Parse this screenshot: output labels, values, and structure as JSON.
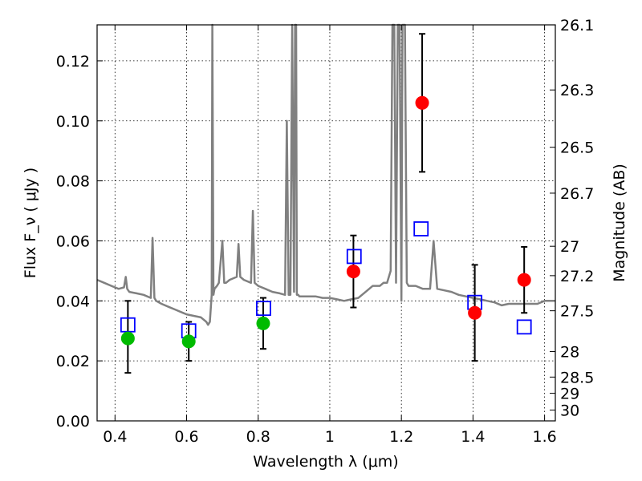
{
  "chart_data": {
    "type": "scatter",
    "xlabel": "Wavelength  λ (μm)",
    "ylabel": "Flux  F_ν  ( μJy )",
    "y2label": "Magnitude (AB)",
    "xlim": [
      0.35,
      1.63
    ],
    "ylim": [
      0.0,
      0.132
    ],
    "grid": true,
    "x_ticks": [
      0.4,
      0.6,
      0.8,
      1.0,
      1.2,
      1.4,
      1.6
    ],
    "x_tick_labels": [
      "0.4",
      "0.6",
      "0.8",
      "1",
      "1.2",
      "1.4",
      "1.6"
    ],
    "y_ticks": [
      0.0,
      0.02,
      0.04,
      0.06,
      0.08,
      0.1,
      0.12
    ],
    "y_tick_labels": [
      "0.00",
      "0.02",
      "0.04",
      "0.06",
      "0.08",
      "0.10",
      "0.12"
    ],
    "y2_ticks": [
      {
        "label": "26.1",
        "flux": 0.132
      },
      {
        "label": "26.3",
        "flux": 0.1103
      },
      {
        "label": "26.5",
        "flux": 0.0912
      },
      {
        "label": "26.7",
        "flux": 0.0759
      },
      {
        "label": "27",
        "flux": 0.0582
      },
      {
        "label": "27.2",
        "flux": 0.0484
      },
      {
        "label": "27.5",
        "flux": 0.0367
      },
      {
        "label": "28",
        "flux": 0.0231
      },
      {
        "label": "28.5",
        "flux": 0.0146
      },
      {
        "label": "29",
        "flux": 0.0092
      },
      {
        "label": "30",
        "flux": 0.0036
      }
    ],
    "series": [
      {
        "kind": "model_spectrum",
        "color": "#808080",
        "x": [
          0.35,
          0.37,
          0.39,
          0.41,
          0.425,
          0.43,
          0.434,
          0.44,
          0.46,
          0.48,
          0.5,
          0.505,
          0.51,
          0.515,
          0.53,
          0.55,
          0.57,
          0.59,
          0.6,
          0.62,
          0.64,
          0.655,
          0.66,
          0.665,
          0.67,
          0.672,
          0.675,
          0.678,
          0.685,
          0.69,
          0.7,
          0.705,
          0.71,
          0.72,
          0.74,
          0.745,
          0.75,
          0.76,
          0.78,
          0.785,
          0.79,
          0.8,
          0.82,
          0.84,
          0.86,
          0.875,
          0.88,
          0.885,
          0.89,
          0.895,
          0.9,
          0.903,
          0.906,
          0.908,
          0.912,
          0.915,
          0.92,
          0.94,
          0.96,
          0.98,
          1.0,
          1.02,
          1.04,
          1.06,
          1.08,
          1.1,
          1.12,
          1.14,
          1.15,
          1.16,
          1.17,
          1.175,
          1.18,
          1.185,
          1.19,
          1.195,
          1.2,
          1.203,
          1.206,
          1.21,
          1.215,
          1.22,
          1.23,
          1.24,
          1.26,
          1.28,
          1.29,
          1.3,
          1.32,
          1.34,
          1.36,
          1.38,
          1.4,
          1.42,
          1.44,
          1.46,
          1.48,
          1.5,
          1.52,
          1.54,
          1.56,
          1.58,
          1.6,
          1.63
        ],
        "y": [
          0.047,
          0.046,
          0.045,
          0.044,
          0.0445,
          0.048,
          0.044,
          0.043,
          0.0425,
          0.042,
          0.041,
          0.061,
          0.041,
          0.04,
          0.039,
          0.038,
          0.037,
          0.036,
          0.0355,
          0.035,
          0.0345,
          0.033,
          0.032,
          0.033,
          0.042,
          0.132,
          0.042,
          0.044,
          0.045,
          0.046,
          0.06,
          0.046,
          0.046,
          0.047,
          0.048,
          0.059,
          0.048,
          0.047,
          0.046,
          0.07,
          0.046,
          0.045,
          0.044,
          0.043,
          0.0425,
          0.042,
          0.1,
          0.042,
          0.042,
          0.132,
          0.043,
          0.132,
          0.132,
          0.042,
          0.042,
          0.0415,
          0.0415,
          0.0415,
          0.0415,
          0.041,
          0.041,
          0.0405,
          0.04,
          0.0405,
          0.041,
          0.043,
          0.045,
          0.045,
          0.046,
          0.046,
          0.05,
          0.132,
          0.132,
          0.046,
          0.132,
          0.132,
          0.04,
          0.132,
          0.132,
          0.132,
          0.046,
          0.045,
          0.045,
          0.045,
          0.044,
          0.044,
          0.06,
          0.044,
          0.0435,
          0.043,
          0.042,
          0.0415,
          0.041,
          0.0405,
          0.04,
          0.0395,
          0.0385,
          0.039,
          0.039,
          0.039,
          0.039,
          0.039,
          0.04,
          0.04
        ]
      },
      {
        "kind": "model_photometry",
        "marker": "open_square",
        "color": "#0000ff",
        "x": [
          0.436,
          0.606,
          0.815,
          1.068,
          1.255,
          1.405,
          1.543
        ],
        "y": [
          0.032,
          0.03,
          0.0375,
          0.0548,
          0.064,
          0.0395,
          0.0313
        ]
      },
      {
        "kind": "observed",
        "marker": "filled_circle",
        "color": "#00bb00",
        "x": [
          0.436,
          0.606,
          0.814
        ],
        "y": [
          0.0275,
          0.0265,
          0.0325
        ],
        "yerr": [
          [
            0.0115,
            0.0125
          ],
          [
            0.0065,
            0.0065
          ],
          [
            0.0085,
            0.0085
          ]
        ]
      },
      {
        "kind": "observed",
        "marker": "filled_circle",
        "color": "#ff0000",
        "x": [
          1.066,
          1.258,
          1.405,
          1.543
        ],
        "y": [
          0.0498,
          0.106,
          0.036,
          0.047
        ],
        "yerr": [
          [
            0.012,
            0.012
          ],
          [
            0.023,
            0.023
          ],
          [
            0.016,
            0.016
          ],
          [
            0.011,
            0.011
          ]
        ]
      }
    ]
  }
}
